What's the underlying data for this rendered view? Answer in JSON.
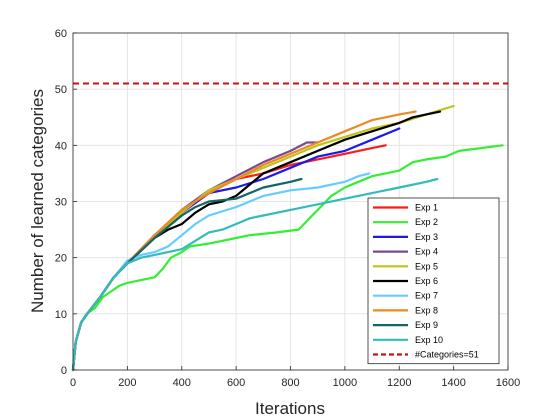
{
  "chart_data": {
    "type": "line",
    "xlabel": "Iterations",
    "ylabel": "Number of learned categories",
    "xlim": [
      0,
      1600
    ],
    "ylim": [
      0,
      60
    ],
    "xticks": [
      0,
      200,
      400,
      600,
      800,
      1000,
      1200,
      1400,
      1600
    ],
    "yticks": [
      0,
      10,
      20,
      30,
      40,
      50,
      60
    ],
    "grid": true,
    "legend_position": "bottom-right",
    "series": [
      {
        "name": "Exp 1",
        "color": "#ff1a1a",
        "points": [
          [
            0,
            0
          ],
          [
            10,
            5
          ],
          [
            30,
            8.5
          ],
          [
            60,
            10.5
          ],
          [
            100,
            13
          ],
          [
            150,
            16.5
          ],
          [
            200,
            19
          ],
          [
            300,
            24
          ],
          [
            400,
            28
          ],
          [
            500,
            31.5
          ],
          [
            600,
            34
          ],
          [
            700,
            35
          ],
          [
            800,
            36.5
          ],
          [
            900,
            37.5
          ],
          [
            1000,
            38.5
          ],
          [
            1100,
            39.5
          ],
          [
            1150,
            40
          ]
        ]
      },
      {
        "name": "Exp 2",
        "color": "#33ee33",
        "points": [
          [
            0,
            0
          ],
          [
            10,
            5
          ],
          [
            30,
            8.5
          ],
          [
            50,
            10
          ],
          [
            80,
            11
          ],
          [
            110,
            13
          ],
          [
            140,
            14
          ],
          [
            170,
            15
          ],
          [
            200,
            15.5
          ],
          [
            250,
            16
          ],
          [
            300,
            16.5
          ],
          [
            330,
            18
          ],
          [
            360,
            20
          ],
          [
            400,
            21
          ],
          [
            430,
            22
          ],
          [
            500,
            22.5
          ],
          [
            550,
            23
          ],
          [
            600,
            23.5
          ],
          [
            650,
            24
          ],
          [
            750,
            24.5
          ],
          [
            830,
            25
          ],
          [
            870,
            27
          ],
          [
            910,
            29
          ],
          [
            950,
            31
          ],
          [
            1000,
            32.5
          ],
          [
            1050,
            33.5
          ],
          [
            1100,
            34.5
          ],
          [
            1150,
            35
          ],
          [
            1200,
            35.5
          ],
          [
            1250,
            37
          ],
          [
            1300,
            37.5
          ],
          [
            1370,
            38
          ],
          [
            1420,
            39
          ],
          [
            1500,
            39.5
          ],
          [
            1580,
            40
          ]
        ]
      },
      {
        "name": "Exp 3",
        "color": "#1a1aee",
        "points": [
          [
            0,
            0
          ],
          [
            10,
            5
          ],
          [
            30,
            8.5
          ],
          [
            60,
            10.5
          ],
          [
            100,
            13
          ],
          [
            150,
            16.5
          ],
          [
            200,
            19
          ],
          [
            300,
            24
          ],
          [
            400,
            28
          ],
          [
            500,
            31.5
          ],
          [
            600,
            32.5
          ],
          [
            700,
            34
          ],
          [
            800,
            36
          ],
          [
            900,
            38
          ],
          [
            1000,
            39
          ],
          [
            1100,
            41
          ],
          [
            1200,
            43
          ]
        ]
      },
      {
        "name": "Exp 4",
        "color": "#7a4a8c",
        "points": [
          [
            0,
            0
          ],
          [
            10,
            5
          ],
          [
            30,
            8.5
          ],
          [
            60,
            10.5
          ],
          [
            100,
            13
          ],
          [
            150,
            16.5
          ],
          [
            200,
            19
          ],
          [
            300,
            24
          ],
          [
            400,
            28.5
          ],
          [
            500,
            32
          ],
          [
            600,
            34.5
          ],
          [
            700,
            37
          ],
          [
            800,
            39
          ],
          [
            860,
            40.5
          ],
          [
            900,
            40.5
          ]
        ]
      },
      {
        "name": "Exp 5",
        "color": "#c2c21a",
        "points": [
          [
            0,
            0
          ],
          [
            10,
            5
          ],
          [
            30,
            8.5
          ],
          [
            60,
            10.5
          ],
          [
            100,
            13
          ],
          [
            150,
            16.5
          ],
          [
            200,
            19
          ],
          [
            300,
            24
          ],
          [
            400,
            28
          ],
          [
            500,
            32
          ],
          [
            600,
            34
          ],
          [
            700,
            36
          ],
          [
            800,
            38
          ],
          [
            900,
            40
          ],
          [
            1000,
            41.5
          ],
          [
            1100,
            43
          ],
          [
            1200,
            44
          ],
          [
            1300,
            45.5
          ],
          [
            1400,
            47
          ]
        ]
      },
      {
        "name": "Exp 6",
        "color": "#000000",
        "points": [
          [
            0,
            0
          ],
          [
            10,
            5
          ],
          [
            30,
            8.5
          ],
          [
            60,
            10.5
          ],
          [
            100,
            13
          ],
          [
            150,
            16.5
          ],
          [
            200,
            19
          ],
          [
            300,
            23.5
          ],
          [
            350,
            25
          ],
          [
            400,
            26
          ],
          [
            450,
            28
          ],
          [
            500,
            29.5
          ],
          [
            550,
            30
          ],
          [
            600,
            31
          ],
          [
            650,
            33
          ],
          [
            700,
            35
          ],
          [
            800,
            37
          ],
          [
            900,
            39
          ],
          [
            1000,
            41
          ],
          [
            1100,
            42.5
          ],
          [
            1200,
            44
          ],
          [
            1250,
            45
          ],
          [
            1350,
            46
          ]
        ]
      },
      {
        "name": "Exp 7",
        "color": "#66ccff",
        "points": [
          [
            0,
            0
          ],
          [
            10,
            5
          ],
          [
            30,
            8.5
          ],
          [
            60,
            10.5
          ],
          [
            100,
            13
          ],
          [
            150,
            16.5
          ],
          [
            200,
            19.5
          ],
          [
            250,
            20.5
          ],
          [
            300,
            21
          ],
          [
            350,
            22
          ],
          [
            400,
            24
          ],
          [
            450,
            26
          ],
          [
            500,
            27.5
          ],
          [
            600,
            29
          ],
          [
            700,
            31
          ],
          [
            800,
            32
          ],
          [
            900,
            32.5
          ],
          [
            1000,
            33.5
          ],
          [
            1050,
            34.5
          ],
          [
            1090,
            35
          ]
        ]
      },
      {
        "name": "Exp 8",
        "color": "#ee8822",
        "points": [
          [
            0,
            0
          ],
          [
            10,
            5
          ],
          [
            30,
            8.5
          ],
          [
            60,
            10.5
          ],
          [
            100,
            13
          ],
          [
            150,
            16.5
          ],
          [
            200,
            19
          ],
          [
            300,
            24
          ],
          [
            400,
            28.5
          ],
          [
            500,
            31.5
          ],
          [
            600,
            34
          ],
          [
            700,
            36.5
          ],
          [
            800,
            38.5
          ],
          [
            850,
            39.5
          ],
          [
            900,
            40.5
          ],
          [
            1000,
            42.5
          ],
          [
            1100,
            44.5
          ],
          [
            1150,
            45
          ],
          [
            1200,
            45.5
          ],
          [
            1260,
            46
          ]
        ]
      },
      {
        "name": "Exp 9",
        "color": "#116666",
        "points": [
          [
            0,
            0
          ],
          [
            10,
            5
          ],
          [
            30,
            8.5
          ],
          [
            60,
            10.5
          ],
          [
            100,
            13
          ],
          [
            150,
            16.5
          ],
          [
            200,
            19
          ],
          [
            300,
            23.5
          ],
          [
            400,
            27.5
          ],
          [
            450,
            29
          ],
          [
            500,
            30
          ],
          [
            600,
            30.5
          ],
          [
            700,
            32.5
          ],
          [
            800,
            33.5
          ],
          [
            840,
            34
          ]
        ]
      },
      {
        "name": "Exp 10",
        "color": "#33bbbb",
        "points": [
          [
            0,
            0
          ],
          [
            10,
            5
          ],
          [
            30,
            8.5
          ],
          [
            60,
            10.5
          ],
          [
            100,
            13
          ],
          [
            150,
            16.5
          ],
          [
            200,
            19
          ],
          [
            250,
            20
          ],
          [
            300,
            20.5
          ],
          [
            350,
            21
          ],
          [
            400,
            21.5
          ],
          [
            450,
            23
          ],
          [
            500,
            24.5
          ],
          [
            550,
            25
          ],
          [
            600,
            26
          ],
          [
            650,
            27
          ],
          [
            700,
            27.5
          ],
          [
            800,
            28.5
          ],
          [
            900,
            29.5
          ],
          [
            1000,
            30.5
          ],
          [
            1100,
            31.5
          ],
          [
            1200,
            32.5
          ],
          [
            1300,
            33.5
          ],
          [
            1340,
            34
          ]
        ]
      }
    ],
    "reference_line": {
      "label": "#Categories=51",
      "y": 51,
      "color": "#cc1111",
      "style": "dashed"
    }
  }
}
